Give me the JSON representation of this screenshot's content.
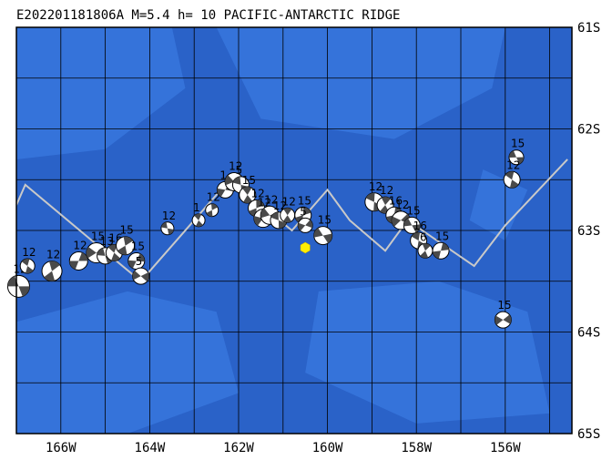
{
  "title": "E202201181806A  M=5.4  h= 10 PACIFIC-ANTARCTIC RIDGE",
  "map": {
    "lon_range": [
      -167,
      -154.5
    ],
    "lat_range": [
      -65,
      -61
    ],
    "lon_labels": [
      "166W",
      "164W",
      "162W",
      "160W",
      "158W",
      "156W"
    ],
    "lon_label_values": [
      -166,
      -164,
      -162,
      -160,
      -158,
      -156
    ],
    "lat_labels": [
      "61S",
      "62S",
      "63S",
      "64S",
      "65S"
    ],
    "lat_label_values": [
      -61,
      -62,
      -63,
      -64,
      -65
    ],
    "colors": {
      "ocean": "#2a62c8",
      "light_bathy": "#3a7ae0",
      "grid": "#000000",
      "plate_boundary": "#c9c9c9",
      "event_marker": "#ffee00"
    }
  },
  "event": {
    "lon": -160.5,
    "lat": -63.17
  },
  "plate_boundary": [
    [
      -167,
      -62.75
    ],
    [
      -166.8,
      -62.55
    ],
    [
      -165.3,
      -63.1
    ],
    [
      -164.2,
      -63.5
    ],
    [
      -163.8,
      -63.3
    ],
    [
      -162.6,
      -62.7
    ],
    [
      -162.2,
      -62.5
    ],
    [
      -160.8,
      -63.0
    ],
    [
      -160.0,
      -62.6
    ],
    [
      -159.5,
      -62.9
    ],
    [
      -158.7,
      -63.2
    ],
    [
      -158.2,
      -62.9
    ],
    [
      -156.7,
      -63.35
    ],
    [
      -156.0,
      -62.95
    ],
    [
      -154.6,
      -62.3
    ]
  ],
  "mechanisms": [
    {
      "lon": -166.95,
      "lat": -63.55,
      "label": "12",
      "size": 12
    },
    {
      "lon": -166.75,
      "lat": -63.35,
      "label": "12",
      "size": 8
    },
    {
      "lon": -166.2,
      "lat": -63.4,
      "label": "12",
      "size": 11
    },
    {
      "lon": -165.6,
      "lat": -63.3,
      "label": "12",
      "size": 10
    },
    {
      "lon": -165.2,
      "lat": -63.22,
      "label": "15",
      "size": 11
    },
    {
      "lon": -165.0,
      "lat": -63.25,
      "label": "13",
      "size": 9
    },
    {
      "lon": -164.8,
      "lat": -63.22,
      "label": "16",
      "size": 9
    },
    {
      "lon": -164.55,
      "lat": -63.15,
      "label": "15",
      "size": 10
    },
    {
      "lon": -164.3,
      "lat": -63.3,
      "label": "15",
      "size": 9
    },
    {
      "lon": -164.2,
      "lat": -63.45,
      "label": "5",
      "size": 9
    },
    {
      "lon": -163.6,
      "lat": -62.98,
      "label": "12",
      "size": 7
    },
    {
      "lon": -162.9,
      "lat": -62.9,
      "label": "1",
      "size": 7
    },
    {
      "lon": -162.6,
      "lat": -62.8,
      "label": "12",
      "size": 7
    },
    {
      "lon": -162.3,
      "lat": -62.6,
      "label": "1",
      "size": 9
    },
    {
      "lon": -162.1,
      "lat": -62.52,
      "label": "12",
      "size": 10
    },
    {
      "lon": -161.95,
      "lat": -62.55,
      "label": "5",
      "size": 9
    },
    {
      "lon": -161.8,
      "lat": -62.65,
      "label": "15",
      "size": 9
    },
    {
      "lon": -161.6,
      "lat": -62.78,
      "label": "12",
      "size": 9
    },
    {
      "lon": -161.45,
      "lat": -62.88,
      "label": "12",
      "size": 10
    },
    {
      "lon": -161.3,
      "lat": -62.85,
      "label": "12",
      "size": 10
    },
    {
      "lon": -161.1,
      "lat": -62.9,
      "label": "12",
      "size": 9
    },
    {
      "lon": -160.9,
      "lat": -62.85,
      "label": "12",
      "size": 8
    },
    {
      "lon": -160.55,
      "lat": -62.85,
      "label": "15",
      "size": 9
    },
    {
      "lon": -160.5,
      "lat": -62.95,
      "label": "5",
      "size": 8
    },
    {
      "lon": -160.1,
      "lat": -63.05,
      "label": "15",
      "size": 10
    },
    {
      "lon": -158.95,
      "lat": -62.72,
      "label": "12",
      "size": 10
    },
    {
      "lon": -158.7,
      "lat": -62.75,
      "label": "12",
      "size": 9
    },
    {
      "lon": -158.5,
      "lat": -62.85,
      "label": "16",
      "size": 9
    },
    {
      "lon": -158.35,
      "lat": -62.9,
      "label": "12",
      "size": 10
    },
    {
      "lon": -158.1,
      "lat": -62.95,
      "label": "15",
      "size": 9
    },
    {
      "lon": -157.95,
      "lat": -63.1,
      "label": "16",
      "size": 9
    },
    {
      "lon": -157.8,
      "lat": -63.2,
      "label": "6",
      "size": 8
    },
    {
      "lon": -157.45,
      "lat": -63.2,
      "label": "15",
      "size": 9
    },
    {
      "lon": -156.05,
      "lat": -63.88,
      "label": "15",
      "size": 9
    },
    {
      "lon": -155.75,
      "lat": -62.28,
      "label": "15",
      "size": 8
    },
    {
      "lon": -155.85,
      "lat": -62.5,
      "label": "12",
      "size": 9
    }
  ]
}
